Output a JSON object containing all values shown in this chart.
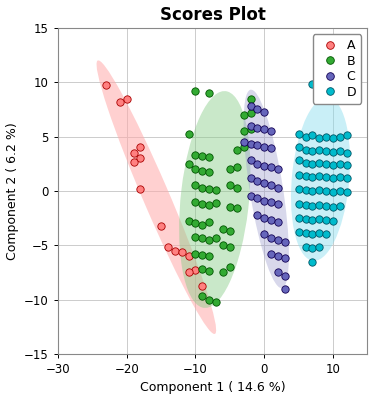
{
  "title": "Scores Plot",
  "xlabel": "Component 1 ( 14.6 %)",
  "ylabel": "Component 2 ( 6.2 %)",
  "xlim": [
    -30,
    15
  ],
  "ylim": [
    -15,
    15
  ],
  "xticks": [
    -30,
    -20,
    -10,
    0,
    10
  ],
  "yticks": [
    -15,
    -10,
    -5,
    0,
    5,
    10,
    15
  ],
  "groups": {
    "A": {
      "color": "#FF8080",
      "edge_color": "#AA0000",
      "ellipse_color": "#FFAAAA",
      "ellipse_alpha": 0.55,
      "points": [
        [
          -23,
          9.7
        ],
        [
          -20,
          8.5
        ],
        [
          -21,
          8.2
        ],
        [
          -18,
          4.0
        ],
        [
          -19,
          3.5
        ],
        [
          -18,
          3.0
        ],
        [
          -19,
          2.7
        ],
        [
          -18,
          0.2
        ],
        [
          -15,
          -3.2
        ],
        [
          -13,
          -5.5
        ],
        [
          -14,
          -5.2
        ],
        [
          -12,
          -5.6
        ],
        [
          -11,
          -6.0
        ],
        [
          -10,
          -7.3
        ],
        [
          -11,
          -7.5
        ],
        [
          -9,
          -8.8
        ]
      ]
    },
    "B": {
      "color": "#33AA33",
      "edge_color": "#005500",
      "ellipse_color": "#88CC88",
      "ellipse_alpha": 0.45,
      "points": [
        [
          -10,
          9.2
        ],
        [
          -8,
          9.0
        ],
        [
          -11,
          5.2
        ],
        [
          -10,
          3.3
        ],
        [
          -9,
          3.2
        ],
        [
          -8,
          3.1
        ],
        [
          -11,
          2.5
        ],
        [
          -10,
          2.0
        ],
        [
          -9,
          1.8
        ],
        [
          -8,
          1.7
        ],
        [
          -10,
          0.5
        ],
        [
          -9,
          0.3
        ],
        [
          -8,
          0.2
        ],
        [
          -7,
          0.1
        ],
        [
          -10,
          -1.0
        ],
        [
          -9,
          -1.2
        ],
        [
          -8,
          -1.3
        ],
        [
          -7,
          -1.1
        ],
        [
          -11,
          -2.8
        ],
        [
          -10,
          -3.0
        ],
        [
          -9,
          -3.1
        ],
        [
          -8,
          -2.9
        ],
        [
          -10,
          -4.2
        ],
        [
          -9,
          -4.3
        ],
        [
          -8,
          -4.5
        ],
        [
          -7,
          -4.3
        ],
        [
          -10,
          -5.8
        ],
        [
          -9,
          -5.9
        ],
        [
          -8,
          -6.0
        ],
        [
          -9,
          -7.2
        ],
        [
          -8,
          -7.4
        ],
        [
          -9,
          -9.7
        ],
        [
          -8,
          -10.0
        ],
        [
          -7,
          -10.2
        ],
        [
          -6,
          -7.5
        ],
        [
          -5,
          -7.0
        ],
        [
          -6,
          -5.0
        ],
        [
          -5,
          -5.2
        ],
        [
          -6,
          -3.5
        ],
        [
          -5,
          -3.7
        ],
        [
          -5,
          -1.5
        ],
        [
          -4,
          -1.6
        ],
        [
          -5,
          0.5
        ],
        [
          -4,
          0.3
        ],
        [
          -5,
          2.0
        ],
        [
          -4,
          2.2
        ],
        [
          -4,
          3.8
        ],
        [
          -3,
          4.0
        ],
        [
          -3,
          5.5
        ],
        [
          -2,
          5.7
        ],
        [
          -3,
          7.0
        ],
        [
          -2,
          7.2
        ],
        [
          -2,
          8.5
        ]
      ]
    },
    "C": {
      "color": "#6666BB",
      "edge_color": "#110055",
      "ellipse_color": "#9999CC",
      "ellipse_alpha": 0.38,
      "points": [
        [
          -2,
          7.8
        ],
        [
          -1,
          7.5
        ],
        [
          0,
          7.3
        ],
        [
          -2,
          6.0
        ],
        [
          -1,
          5.8
        ],
        [
          0,
          5.7
        ],
        [
          1,
          5.5
        ],
        [
          -3,
          4.5
        ],
        [
          -2,
          4.3
        ],
        [
          -1,
          4.2
        ],
        [
          0,
          4.0
        ],
        [
          1,
          3.9
        ],
        [
          -2,
          2.8
        ],
        [
          -1,
          2.5
        ],
        [
          0,
          2.3
        ],
        [
          1,
          2.2
        ],
        [
          2,
          2.0
        ],
        [
          -2,
          1.2
        ],
        [
          -1,
          0.9
        ],
        [
          0,
          0.7
        ],
        [
          1,
          0.5
        ],
        [
          2,
          0.3
        ],
        [
          -2,
          -0.5
        ],
        [
          -1,
          -0.7
        ],
        [
          0,
          -0.9
        ],
        [
          1,
          -1.0
        ],
        [
          2,
          -1.2
        ],
        [
          -1,
          -2.2
        ],
        [
          0,
          -2.5
        ],
        [
          1,
          -2.7
        ],
        [
          2,
          -2.9
        ],
        [
          0,
          -4.0
        ],
        [
          1,
          -4.3
        ],
        [
          2,
          -4.5
        ],
        [
          3,
          -4.7
        ],
        [
          1,
          -5.8
        ],
        [
          2,
          -6.0
        ],
        [
          3,
          -6.2
        ],
        [
          2,
          -7.5
        ],
        [
          3,
          -7.8
        ],
        [
          3,
          -9.0
        ]
      ]
    },
    "D": {
      "color": "#00BBCC",
      "edge_color": "#005566",
      "ellipse_color": "#88DDEE",
      "ellipse_alpha": 0.45,
      "points": [
        [
          7,
          9.8
        ],
        [
          8,
          9.6
        ],
        [
          10,
          9.5
        ],
        [
          11,
          9.3
        ],
        [
          5,
          5.2
        ],
        [
          6,
          5.0
        ],
        [
          7,
          5.1
        ],
        [
          8,
          4.9
        ],
        [
          9,
          5.0
        ],
        [
          10,
          4.9
        ],
        [
          11,
          5.0
        ],
        [
          12,
          5.1
        ],
        [
          5,
          4.0
        ],
        [
          6,
          3.8
        ],
        [
          7,
          3.7
        ],
        [
          8,
          3.8
        ],
        [
          9,
          3.7
        ],
        [
          10,
          3.6
        ],
        [
          11,
          3.7
        ],
        [
          12,
          3.5
        ],
        [
          5,
          2.8
        ],
        [
          6,
          2.6
        ],
        [
          7,
          2.5
        ],
        [
          8,
          2.6
        ],
        [
          9,
          2.5
        ],
        [
          10,
          2.4
        ],
        [
          11,
          2.5
        ],
        [
          12,
          2.4
        ],
        [
          5,
          1.5
        ],
        [
          6,
          1.4
        ],
        [
          7,
          1.3
        ],
        [
          8,
          1.4
        ],
        [
          9,
          1.3
        ],
        [
          10,
          1.2
        ],
        [
          11,
          1.3
        ],
        [
          12,
          1.2
        ],
        [
          5,
          0.2
        ],
        [
          6,
          0.1
        ],
        [
          7,
          0.0
        ],
        [
          8,
          0.1
        ],
        [
          9,
          0.0
        ],
        [
          10,
          -0.1
        ],
        [
          11,
          0.0
        ],
        [
          12,
          -0.1
        ],
        [
          5,
          -1.2
        ],
        [
          6,
          -1.3
        ],
        [
          7,
          -1.4
        ],
        [
          8,
          -1.3
        ],
        [
          9,
          -1.4
        ],
        [
          10,
          -1.5
        ],
        [
          11,
          -1.4
        ],
        [
          5,
          -2.5
        ],
        [
          6,
          -2.6
        ],
        [
          7,
          -2.7
        ],
        [
          8,
          -2.6
        ],
        [
          9,
          -2.7
        ],
        [
          10,
          -2.8
        ],
        [
          5,
          -3.8
        ],
        [
          6,
          -3.9
        ],
        [
          7,
          -4.0
        ],
        [
          8,
          -3.9
        ],
        [
          9,
          -4.0
        ],
        [
          6,
          -5.2
        ],
        [
          7,
          -5.3
        ],
        [
          8,
          -5.2
        ],
        [
          7,
          -6.5
        ]
      ]
    }
  },
  "legend_order": [
    "A",
    "B",
    "C",
    "D"
  ],
  "background_color": "#FFFFFF",
  "grid_color": "#CCCCCC",
  "title_fontsize": 12,
  "label_fontsize": 9,
  "tick_fontsize": 8.5,
  "legend_fontsize": 9
}
